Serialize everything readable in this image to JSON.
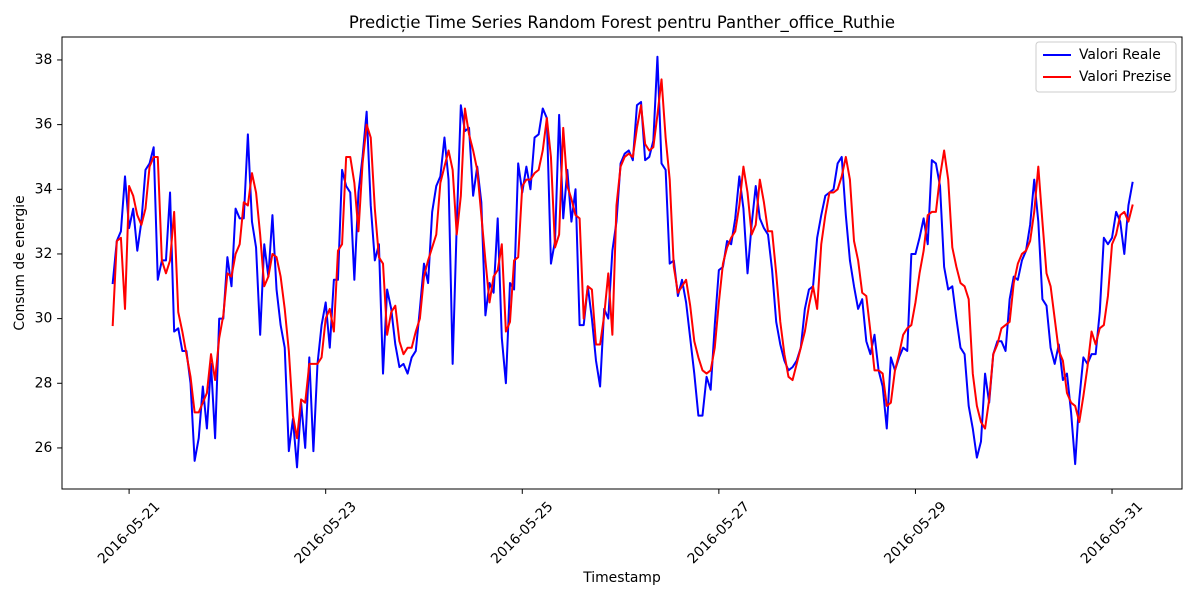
{
  "chart_data": {
    "type": "line",
    "title": "Predicție Time Series Random Forest pentru Panther_office_Ruthie",
    "xlabel": "Timestamp",
    "ylabel": "Consum de energie",
    "xlim": [
      "2016-05-20 07:37",
      "2016-05-31 17:05"
    ],
    "ylim": [
      24.73,
      38.71
    ],
    "xticks": [
      "2016-05-21",
      "2016-05-23",
      "2016-05-25",
      "2016-05-27",
      "2016-05-29",
      "2016-05-31"
    ],
    "yticks": [
      26,
      28,
      30,
      32,
      34,
      36,
      38
    ],
    "grid": false,
    "legend": "top-right",
    "x": [
      "2016-05-20 20:00",
      "2016-05-20 21:00",
      "2016-05-20 22:00",
      "2016-05-20 23:00",
      "2016-05-21 00:00",
      "2016-05-21 01:00",
      "2016-05-21 02:00",
      "2016-05-21 03:00",
      "2016-05-21 04:00",
      "2016-05-21 05:00",
      "2016-05-21 06:00",
      "2016-05-21 07:00",
      "2016-05-21 08:00",
      "2016-05-21 09:00",
      "2016-05-21 10:00",
      "2016-05-21 11:00",
      "2016-05-21 12:00",
      "2016-05-21 13:00",
      "2016-05-21 14:00",
      "2016-05-21 15:00",
      "2016-05-21 16:00",
      "2016-05-21 17:00",
      "2016-05-21 18:00",
      "2016-05-21 19:00",
      "2016-05-21 20:00",
      "2016-05-21 21:00",
      "2016-05-21 22:00",
      "2016-05-21 23:00",
      "2016-05-22 00:00",
      "2016-05-22 01:00",
      "2016-05-22 02:00",
      "2016-05-22 03:00",
      "2016-05-22 04:00",
      "2016-05-22 05:00",
      "2016-05-22 06:00",
      "2016-05-22 07:00",
      "2016-05-22 08:00",
      "2016-05-22 09:00",
      "2016-05-22 10:00",
      "2016-05-22 11:00",
      "2016-05-22 12:00",
      "2016-05-22 13:00",
      "2016-05-22 14:00",
      "2016-05-22 15:00",
      "2016-05-22 16:00",
      "2016-05-22 17:00",
      "2016-05-22 18:00",
      "2016-05-22 19:00",
      "2016-05-22 20:00",
      "2016-05-22 21:00",
      "2016-05-22 22:00",
      "2016-05-22 23:00",
      "2016-05-23 00:00",
      "2016-05-23 01:00",
      "2016-05-23 02:00",
      "2016-05-23 03:00",
      "2016-05-23 04:00",
      "2016-05-23 05:00",
      "2016-05-23 06:00",
      "2016-05-23 07:00",
      "2016-05-23 08:00",
      "2016-05-23 09:00",
      "2016-05-23 10:00",
      "2016-05-23 11:00",
      "2016-05-23 12:00",
      "2016-05-23 13:00",
      "2016-05-23 14:00",
      "2016-05-23 15:00",
      "2016-05-23 16:00",
      "2016-05-23 17:00",
      "2016-05-23 18:00",
      "2016-05-23 19:00",
      "2016-05-23 20:00",
      "2016-05-23 21:00",
      "2016-05-23 22:00",
      "2016-05-23 23:00",
      "2016-05-24 00:00",
      "2016-05-24 01:00",
      "2016-05-24 02:00",
      "2016-05-24 03:00",
      "2016-05-24 04:00",
      "2016-05-24 05:00",
      "2016-05-24 06:00",
      "2016-05-24 07:00",
      "2016-05-24 08:00",
      "2016-05-24 09:00",
      "2016-05-24 10:00",
      "2016-05-24 11:00",
      "2016-05-24 12:00",
      "2016-05-24 13:00",
      "2016-05-24 14:00",
      "2016-05-24 15:00",
      "2016-05-24 16:00",
      "2016-05-24 17:00",
      "2016-05-24 18:00",
      "2016-05-24 19:00",
      "2016-05-24 20:00",
      "2016-05-24 21:00",
      "2016-05-24 22:00",
      "2016-05-24 23:00",
      "2016-05-25 00:00",
      "2016-05-25 01:00",
      "2016-05-25 02:00",
      "2016-05-25 03:00",
      "2016-05-25 04:00",
      "2016-05-25 05:00",
      "2016-05-25 06:00",
      "2016-05-25 07:00",
      "2016-05-25 08:00",
      "2016-05-25 09:00",
      "2016-05-25 10:00",
      "2016-05-25 11:00",
      "2016-05-25 12:00",
      "2016-05-25 13:00",
      "2016-05-25 14:00",
      "2016-05-25 15:00",
      "2016-05-25 16:00",
      "2016-05-25 17:00",
      "2016-05-25 18:00",
      "2016-05-25 19:00",
      "2016-05-25 20:00",
      "2016-05-25 21:00",
      "2016-05-25 22:00",
      "2016-05-25 23:00",
      "2016-05-26 00:00",
      "2016-05-26 01:00",
      "2016-05-26 02:00",
      "2016-05-26 03:00",
      "2016-05-26 04:00",
      "2016-05-26 05:00",
      "2016-05-26 06:00",
      "2016-05-26 07:00",
      "2016-05-26 08:00",
      "2016-05-26 09:00",
      "2016-05-26 10:00",
      "2016-05-26 11:00",
      "2016-05-26 12:00",
      "2016-05-26 13:00",
      "2016-05-26 14:00",
      "2016-05-26 15:00",
      "2016-05-26 16:00",
      "2016-05-26 17:00",
      "2016-05-26 18:00",
      "2016-05-26 19:00",
      "2016-05-26 20:00",
      "2016-05-26 21:00",
      "2016-05-26 22:00",
      "2016-05-26 23:00",
      "2016-05-27 00:00",
      "2016-05-27 01:00",
      "2016-05-27 02:00",
      "2016-05-27 03:00",
      "2016-05-27 04:00",
      "2016-05-27 05:00",
      "2016-05-27 06:00",
      "2016-05-27 07:00",
      "2016-05-27 08:00",
      "2016-05-27 09:00",
      "2016-05-27 10:00",
      "2016-05-27 11:00",
      "2016-05-27 12:00",
      "2016-05-27 13:00",
      "2016-05-27 14:00",
      "2016-05-27 15:00",
      "2016-05-27 16:00",
      "2016-05-27 17:00",
      "2016-05-27 18:00",
      "2016-05-27 19:00",
      "2016-05-27 20:00",
      "2016-05-27 21:00",
      "2016-05-27 22:00",
      "2016-05-27 23:00",
      "2016-05-28 00:00",
      "2016-05-28 01:00",
      "2016-05-28 02:00",
      "2016-05-28 03:00",
      "2016-05-28 04:00",
      "2016-05-28 05:00",
      "2016-05-28 06:00",
      "2016-05-28 07:00",
      "2016-05-28 08:00",
      "2016-05-28 09:00",
      "2016-05-28 10:00",
      "2016-05-28 11:00",
      "2016-05-28 12:00",
      "2016-05-28 13:00",
      "2016-05-28 14:00",
      "2016-05-28 15:00",
      "2016-05-28 16:00",
      "2016-05-28 17:00",
      "2016-05-28 18:00",
      "2016-05-28 19:00",
      "2016-05-28 20:00",
      "2016-05-28 21:00",
      "2016-05-28 22:00",
      "2016-05-28 23:00",
      "2016-05-29 00:00",
      "2016-05-29 01:00",
      "2016-05-29 02:00",
      "2016-05-29 03:00",
      "2016-05-29 04:00",
      "2016-05-29 05:00",
      "2016-05-29 06:00",
      "2016-05-29 07:00",
      "2016-05-29 08:00",
      "2016-05-29 09:00",
      "2016-05-29 10:00",
      "2016-05-29 11:00",
      "2016-05-29 12:00",
      "2016-05-29 13:00",
      "2016-05-29 14:00",
      "2016-05-29 15:00",
      "2016-05-29 16:00",
      "2016-05-29 17:00",
      "2016-05-29 18:00",
      "2016-05-29 19:00",
      "2016-05-29 20:00",
      "2016-05-29 21:00",
      "2016-05-29 22:00",
      "2016-05-29 23:00",
      "2016-05-30 00:00",
      "2016-05-30 01:00",
      "2016-05-30 02:00",
      "2016-05-30 03:00",
      "2016-05-30 04:00",
      "2016-05-30 05:00",
      "2016-05-30 06:00",
      "2016-05-30 07:00",
      "2016-05-30 08:00",
      "2016-05-30 09:00",
      "2016-05-30 10:00",
      "2016-05-30 11:00",
      "2016-05-30 12:00",
      "2016-05-30 13:00",
      "2016-05-30 14:00",
      "2016-05-30 15:00",
      "2016-05-30 16:00",
      "2016-05-30 17:00",
      "2016-05-30 18:00",
      "2016-05-30 19:00",
      "2016-05-30 20:00",
      "2016-05-30 21:00",
      "2016-05-30 22:00",
      "2016-05-30 23:00",
      "2016-05-31 00:00",
      "2016-05-31 01:00",
      "2016-05-31 02:00",
      "2016-05-31 03:00",
      "2016-05-31 04:00",
      "2016-05-31 05:00"
    ],
    "series": [
      {
        "name": "Valori Reale",
        "color": "#0000ff",
        "values": [
          31.1,
          32.4,
          32.7,
          34.4,
          32.8,
          33.4,
          32.1,
          33.0,
          34.6,
          34.8,
          35.3,
          31.2,
          31.8,
          31.8,
          33.9,
          29.6,
          29.7,
          29.0,
          29.0,
          28.0,
          25.6,
          26.3,
          27.9,
          26.6,
          28.6,
          26.3,
          30.0,
          30.0,
          31.9,
          31.0,
          33.4,
          33.1,
          33.1,
          35.7,
          33.0,
          32.2,
          29.5,
          32.3,
          31.3,
          33.2,
          30.9,
          29.8,
          29.1,
          25.9,
          26.9,
          25.4,
          27.4,
          26.0,
          28.8,
          25.9,
          28.6,
          29.8,
          30.5,
          29.1,
          31.2,
          31.2,
          34.6,
          34.1,
          33.9,
          31.2,
          33.9,
          35.0,
          36.4,
          33.5,
          31.8,
          32.3,
          28.3,
          30.9,
          30.3,
          29.2,
          28.5,
          28.6,
          28.3,
          28.8,
          29.0,
          30.3,
          31.7,
          31.1,
          33.3,
          34.1,
          34.4,
          35.6,
          34.3,
          28.6,
          32.9,
          36.6,
          35.8,
          35.9,
          33.8,
          34.7,
          33.6,
          30.1,
          31.1,
          30.8,
          33.1,
          29.4,
          28.0,
          31.1,
          30.9,
          34.8,
          33.9,
          34.7,
          34.0,
          35.6,
          35.7,
          36.5,
          36.2,
          31.7,
          32.4,
          36.3,
          33.1,
          34.6,
          33.0,
          34.0,
          29.8,
          29.8,
          31.0,
          30.0,
          28.7,
          27.9,
          30.3,
          30.0,
          32.1,
          33.0,
          34.8,
          35.1,
          35.2,
          34.9,
          36.6,
          36.7,
          34.9,
          35.0,
          35.5,
          38.1,
          34.8,
          34.6,
          31.7,
          31.8,
          30.7,
          31.2,
          30.5,
          29.4,
          28.3,
          27.0,
          27.0,
          28.2,
          27.8,
          29.8,
          31.5,
          31.6,
          32.4,
          32.3,
          33.1,
          34.4,
          33.4,
          31.4,
          32.9,
          34.1,
          33.1,
          32.8,
          32.6,
          31.5,
          29.9,
          29.2,
          28.7,
          28.4,
          28.5,
          28.7,
          29.1,
          30.3,
          30.9,
          31.0,
          32.5,
          33.2,
          33.8,
          33.9,
          34.0,
          34.8,
          35.0,
          33.2,
          31.8,
          31.0,
          30.3,
          30.6,
          29.3,
          28.9,
          29.5,
          28.4,
          27.9,
          26.6,
          28.8,
          28.4,
          28.8,
          29.1,
          29.0,
          32.0,
          32.0,
          32.5,
          33.1,
          32.3,
          34.9,
          34.8,
          34.1,
          31.6,
          30.9,
          31.0,
          30.0,
          29.1,
          28.9,
          27.3,
          26.6,
          25.7,
          26.2,
          28.3,
          27.4,
          28.9,
          29.3,
          29.3,
          29.0,
          30.6,
          31.3,
          31.2,
          31.8,
          32.1,
          32.9,
          34.3,
          33.0,
          30.6,
          30.4,
          29.1,
          28.6,
          29.2,
          28.1,
          28.3,
          27.1,
          25.5,
          27.5,
          28.8,
          28.6,
          28.9,
          28.9,
          30.2,
          32.5,
          32.3,
          32.5,
          33.3,
          33.0,
          32.0,
          33.5,
          34.2
        ]
      },
      {
        "name": "Valori Prezise",
        "color": "#ff0000",
        "values": [
          29.8,
          32.4,
          32.5,
          30.3,
          34.1,
          33.8,
          33.2,
          32.9,
          33.4,
          34.7,
          35.0,
          35.0,
          31.8,
          31.4,
          31.8,
          33.3,
          30.2,
          29.6,
          28.9,
          28.2,
          27.1,
          27.1,
          27.4,
          27.7,
          28.9,
          28.1,
          29.4,
          30.1,
          31.4,
          31.3,
          32.0,
          32.3,
          33.6,
          33.5,
          34.5,
          33.9,
          32.6,
          31.0,
          31.3,
          32.0,
          31.9,
          31.3,
          30.3,
          29.0,
          27.0,
          26.3,
          27.5,
          27.4,
          28.6,
          28.6,
          28.6,
          28.8,
          30.0,
          30.3,
          29.6,
          32.1,
          32.3,
          35.0,
          35.0,
          34.2,
          32.7,
          34.8,
          36.0,
          35.6,
          33.4,
          31.9,
          31.7,
          29.5,
          30.2,
          30.4,
          29.3,
          28.9,
          29.1,
          29.1,
          29.6,
          30.0,
          31.3,
          31.8,
          32.2,
          32.6,
          34.2,
          34.7,
          35.2,
          34.6,
          32.6,
          33.8,
          36.5,
          35.7,
          35.2,
          34.6,
          33.2,
          31.8,
          30.5,
          31.3,
          31.5,
          32.3,
          29.6,
          29.9,
          31.8,
          31.9,
          34.1,
          34.3,
          34.3,
          34.5,
          34.6,
          35.2,
          36.2,
          35.0,
          32.2,
          32.6,
          35.9,
          34.1,
          33.7,
          33.2,
          33.1,
          30.0,
          31.0,
          30.9,
          29.2,
          29.2,
          30.1,
          31.4,
          29.5,
          33.5,
          34.7,
          35.0,
          35.1,
          35.0,
          35.9,
          36.6,
          35.4,
          35.2,
          35.3,
          36.3,
          37.4,
          35.6,
          34.3,
          31.6,
          30.8,
          31.0,
          31.2,
          30.4,
          29.3,
          28.8,
          28.4,
          28.3,
          28.4,
          29.1,
          30.5,
          31.7,
          32.2,
          32.5,
          32.7,
          33.5,
          34.7,
          33.9,
          32.6,
          32.9,
          34.3,
          33.6,
          32.7,
          32.7,
          31.4,
          29.9,
          28.9,
          28.2,
          28.1,
          28.6,
          29.1,
          29.6,
          30.4,
          31.0,
          30.3,
          32.3,
          33.2,
          33.9,
          33.9,
          34.0,
          34.4,
          35.0,
          34.3,
          32.4,
          31.8,
          30.8,
          30.7,
          29.6,
          28.4,
          28.4,
          28.3,
          27.3,
          27.4,
          28.4,
          28.9,
          29.5,
          29.7,
          29.8,
          30.5,
          31.4,
          32.1,
          33.2,
          33.3,
          33.3,
          34.4,
          35.2,
          34.3,
          32.2,
          31.6,
          31.1,
          31.0,
          30.6,
          28.3,
          27.3,
          26.8,
          26.6,
          27.5,
          28.9,
          29.2,
          29.7,
          29.8,
          29.9,
          31.1,
          31.7,
          32.0,
          32.1,
          32.4,
          33.3,
          34.7,
          33.0,
          31.4,
          31.0,
          30.0,
          29.0,
          28.7,
          27.7,
          27.4,
          27.3,
          26.8,
          27.6,
          28.5,
          29.6,
          29.2,
          29.7,
          29.8,
          30.7,
          32.3,
          32.6,
          33.2,
          33.3,
          33.0,
          33.5
        ]
      }
    ]
  }
}
